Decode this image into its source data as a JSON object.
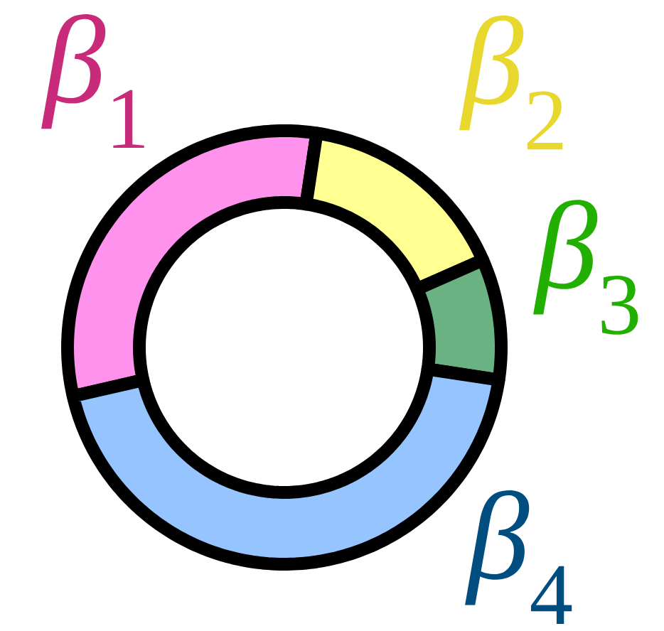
{
  "chart_data": {
    "type": "donut",
    "categories": [
      "*β*$_{1}$",
      "*β*$_{2}$",
      "*β*$_{3}$",
      "*β*$_{4}$"
    ],
    "values": [
      31,
      16,
      9,
      44
    ],
    "colors": [
      "#ff92ec",
      "#ffff92",
      "#6ab282",
      "#96c4ff"
    ]
  }
}
